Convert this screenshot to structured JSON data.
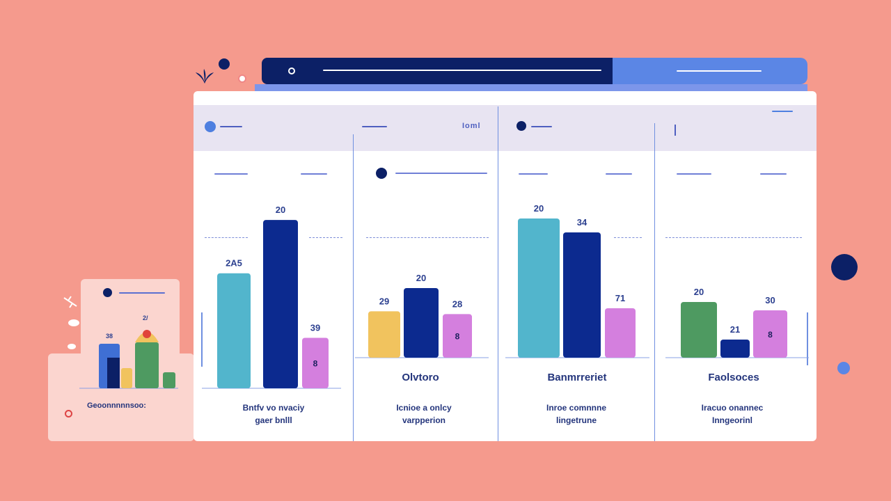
{
  "colors": {
    "background": "#f59a8d",
    "navy": "#0c2a8f",
    "teal": "#52b5cc",
    "violet": "#d47fde",
    "yellow": "#f1c35e",
    "green": "#4e9a61",
    "blue": "#3f6fd4"
  },
  "topbar": {
    "dark_icon": "radio-icon"
  },
  "panel_head": {
    "tag_label": "Ioml"
  },
  "chart_data": [
    {
      "type": "bar",
      "categories": [
        "",
        "",
        ""
      ],
      "values": [
        205,
        300,
        90
      ],
      "labels": [
        "2A5",
        "20",
        "39"
      ],
      "inner_labels": [
        "",
        "",
        "8"
      ],
      "colors": [
        "#52b5cc",
        "#0c2a8f",
        "#d47fde"
      ],
      "ylim": [
        0,
        320
      ],
      "caption": "",
      "description": [
        "Bntfv vo nvaciy",
        "gaer bnlll"
      ]
    },
    {
      "type": "bar",
      "categories": [
        "",
        "",
        ""
      ],
      "values": [
        50,
        75,
        47
      ],
      "labels": [
        "29",
        "20",
        "28"
      ],
      "inner_labels": [
        "",
        "",
        "8"
      ],
      "colors": [
        "#f1c35e",
        "#0c2a8f",
        "#d47fde"
      ],
      "ylim": [
        0,
        300
      ],
      "caption": "Olvtoro",
      "description": [
        "Icnioe a onlcy",
        "varpperion"
      ]
    },
    {
      "type": "bar",
      "categories": [
        "",
        "",
        ""
      ],
      "values": [
        200,
        180,
        71
      ],
      "labels": [
        "20",
        "34",
        "71"
      ],
      "inner_labels": [
        "",
        "",
        ""
      ],
      "colors": [
        "#52b5cc",
        "#0c2a8f",
        "#d47fde"
      ],
      "ylim": [
        0,
        220
      ],
      "caption": "Banmrreriet",
      "description": [
        "Inroe comnnne",
        "lingetrune"
      ]
    },
    {
      "type": "bar",
      "categories": [
        "",
        "",
        ""
      ],
      "values": [
        80,
        26,
        68
      ],
      "labels": [
        "20",
        "21",
        "30"
      ],
      "inner_labels": [
        "",
        "",
        "8"
      ],
      "colors": [
        "#4e9a61",
        "#0c2a8f",
        "#d47fde"
      ],
      "ylim": [
        0,
        200
      ],
      "caption": "Faolsoces",
      "description": [
        "Iracuo onannec",
        "Inngeorinl"
      ]
    },
    {
      "type": "bar",
      "categories": [
        "",
        "",
        "",
        ""
      ],
      "values": [
        64,
        29,
        66,
        23
      ],
      "labels": [
        "38",
        "",
        "",
        ""
      ],
      "top_label": "2/",
      "colors": [
        "#3f6fd4",
        "#f1c35e",
        "#4e9a61",
        "#4e9a61"
      ],
      "ylim": [
        0,
        100
      ],
      "caption": "Geoonnnnnsoo:"
    }
  ]
}
